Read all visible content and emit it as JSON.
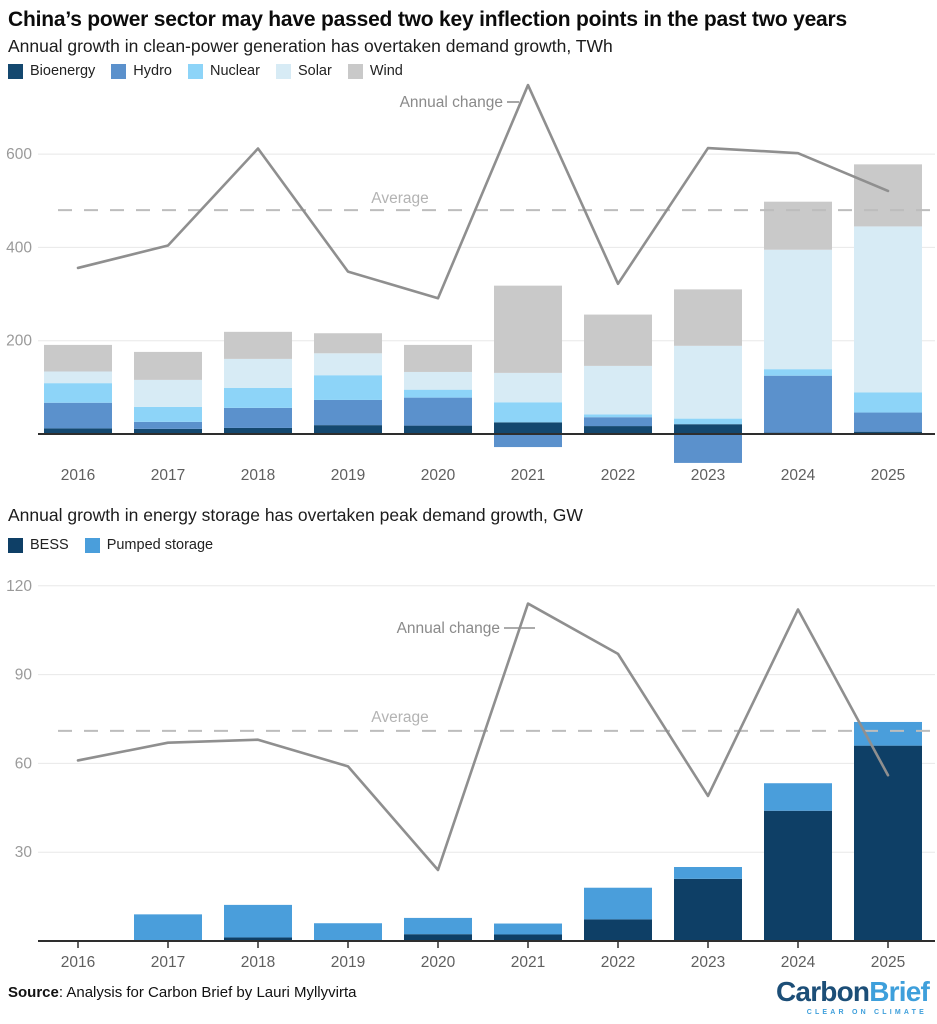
{
  "title": "China’s power sector may have passed two key inflection points in the past two years",
  "charts": [
    {
      "subtitle": "Annual growth in clean-power generation has overtaken demand growth, TWh"
    },
    {
      "subtitle": "Annual growth in energy storage has overtaken peak demand growth, GW"
    }
  ],
  "chart_data": [
    {
      "type": "bar",
      "stacked": true,
      "title": "Annual growth in clean-power generation has overtaken demand growth, TWh",
      "categories": [
        "2016",
        "2017",
        "2018",
        "2019",
        "2020",
        "2021",
        "2022",
        "2023",
        "2024",
        "2025"
      ],
      "series": [
        {
          "name": "Bioenergy",
          "color": "#14486f",
          "values": [
            12,
            11,
            13,
            19,
            18,
            25,
            17,
            21,
            3,
            5
          ]
        },
        {
          "name": "Hydro",
          "color": "#5b91cc",
          "values": [
            55,
            15,
            43,
            54,
            60,
            -28,
            19,
            -62,
            122,
            41
          ]
        },
        {
          "name": "Nuclear",
          "color": "#8dd4f8",
          "values": [
            42,
            32,
            43,
            53,
            17,
            43,
            6,
            12,
            14,
            43
          ]
        },
        {
          "name": "Solar",
          "color": "#d7ebf5",
          "values": [
            25,
            58,
            62,
            47,
            38,
            63,
            104,
            156,
            256,
            356
          ]
        },
        {
          "name": "Wind",
          "color": "#c9c9c9",
          "values": [
            57,
            60,
            58,
            43,
            58,
            187,
            110,
            121,
            103,
            133
          ]
        }
      ],
      "line": {
        "name": "Annual change",
        "color": "#8f8f8f",
        "values": [
          356,
          404,
          612,
          348,
          291,
          748,
          322,
          613,
          602,
          521
        ]
      },
      "average": {
        "label": "Average",
        "value": 480
      },
      "yticks": [
        200,
        400,
        600
      ],
      "ylim": [
        -75,
        765
      ],
      "grid": true,
      "unit": "TWh"
    },
    {
      "type": "bar",
      "stacked": true,
      "title": "Annual growth in energy storage has overtaken peak demand growth, GW",
      "categories": [
        "2016",
        "2017",
        "2018",
        "2019",
        "2020",
        "2021",
        "2022",
        "2023",
        "2024",
        "2025"
      ],
      "series": [
        {
          "name": "BESS",
          "color": "#0e3f66",
          "values": [
            0,
            0,
            1.2,
            0,
            2.3,
            2.2,
            7.3,
            21,
            44,
            66
          ]
        },
        {
          "name": "Pumped storage",
          "color": "#4a9edb",
          "values": [
            0,
            9,
            11,
            6,
            5.5,
            3.7,
            10.7,
            4,
            9.3,
            8
          ]
        }
      ],
      "line": {
        "name": "Annual change",
        "color": "#8f8f8f",
        "values": [
          61,
          67,
          68,
          59,
          24,
          114,
          97,
          49,
          112,
          56
        ]
      },
      "average": {
        "label": "Average",
        "value": 71
      },
      "yticks": [
        30,
        60,
        90,
        120
      ],
      "ylim": [
        0,
        127
      ],
      "grid": true,
      "unit": "GW"
    }
  ],
  "footer": {
    "source_bold": "Source",
    "source_rest": ": Analysis for Carbon Brief by Lauri Myllyvirta"
  },
  "logo": {
    "part1": "Carbon",
    "part2": "Brief",
    "tagline": "CLEAR ON CLIMATE"
  }
}
